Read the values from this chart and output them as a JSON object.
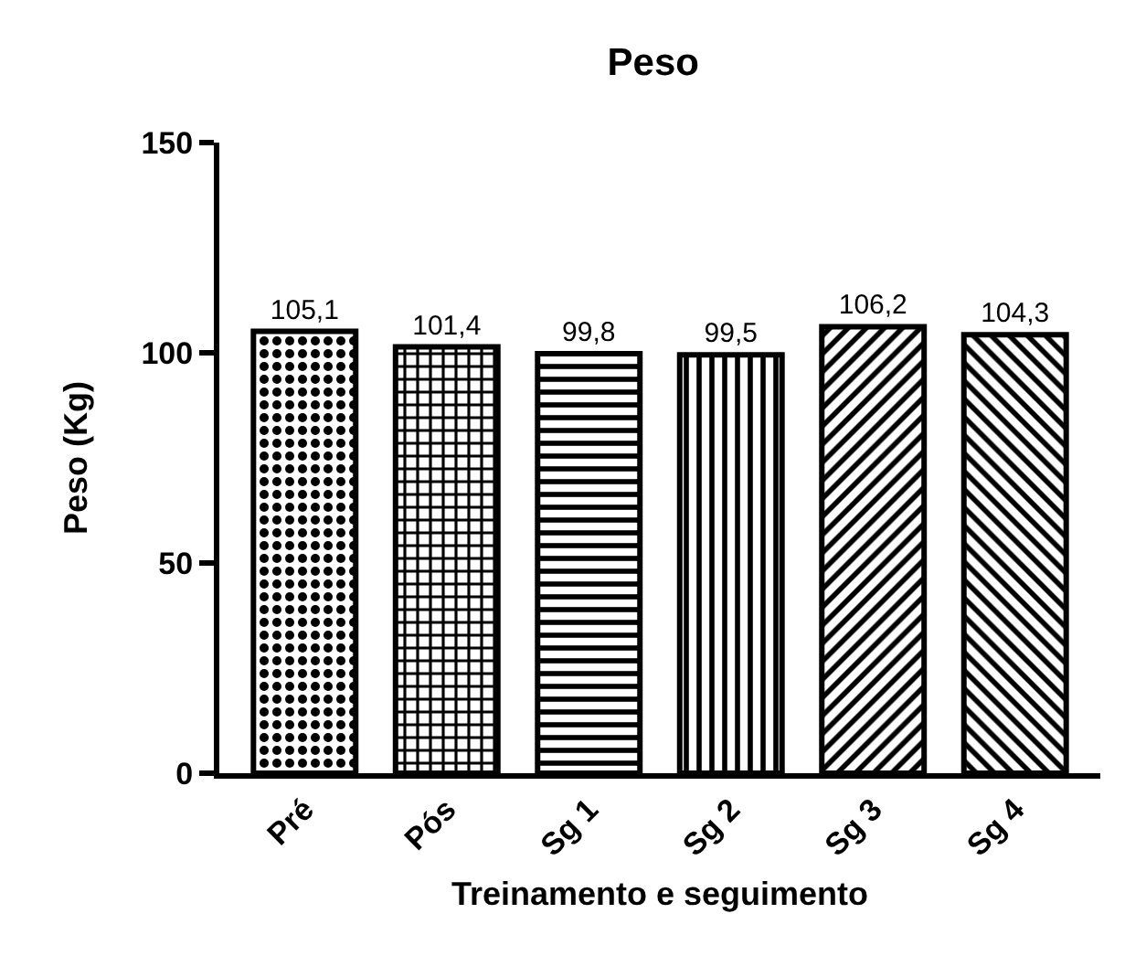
{
  "chart_data": {
    "type": "bar",
    "title": "Peso",
    "xlabel": "Treinamento e seguimento",
    "ylabel": "Peso (Kg)",
    "categories": [
      "Pré",
      "Pós",
      "Sg 1",
      "Sg 2",
      "Sg 3",
      "Sg 4"
    ],
    "values": [
      105.1,
      101.4,
      99.8,
      99.5,
      106.2,
      104.3
    ],
    "value_labels": [
      "105,1",
      "101,4",
      "99,8",
      "99,5",
      "106,2",
      "104,3"
    ],
    "color": "#000000",
    "ylim": [
      0,
      150
    ],
    "yticks": [
      0,
      50,
      100,
      150
    ],
    "grid": false,
    "legend": false
  }
}
